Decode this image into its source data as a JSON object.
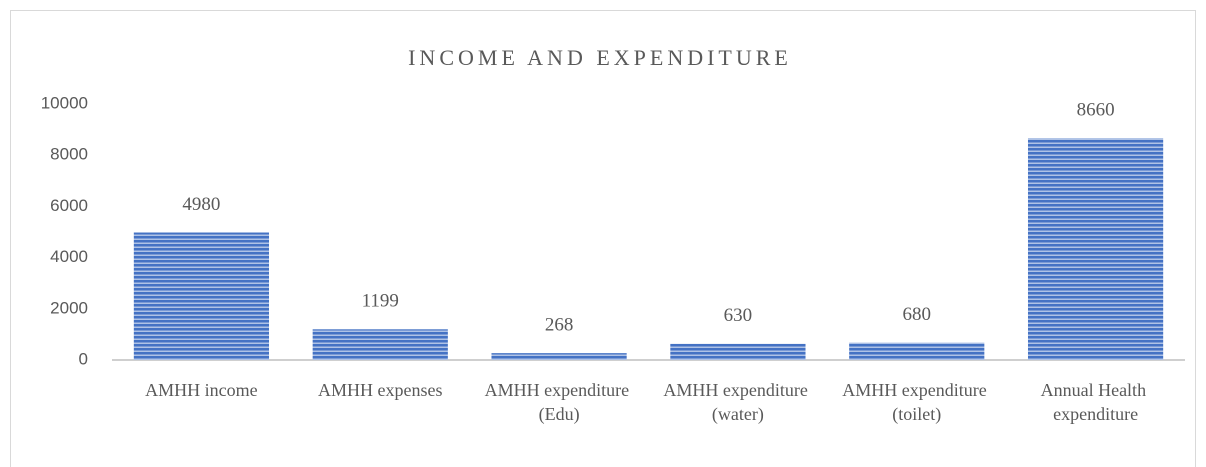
{
  "chart_data": {
    "type": "bar",
    "title": "INCOME AND EXPENDITURE",
    "categories": [
      "AMHH income",
      "AMHH expenses",
      "AMHH expenditure (Edu)",
      "AMHH expenditure (water)",
      "AMHH expenditure (toilet)",
      "Annual Health expenditure"
    ],
    "values": [
      4980,
      1199,
      268,
      630,
      680,
      8660
    ],
    "color": "#4472c4",
    "ylim": [
      0,
      10000
    ],
    "yticks": [
      0,
      2000,
      4000,
      6000,
      8000,
      10000
    ],
    "grid": false
  }
}
